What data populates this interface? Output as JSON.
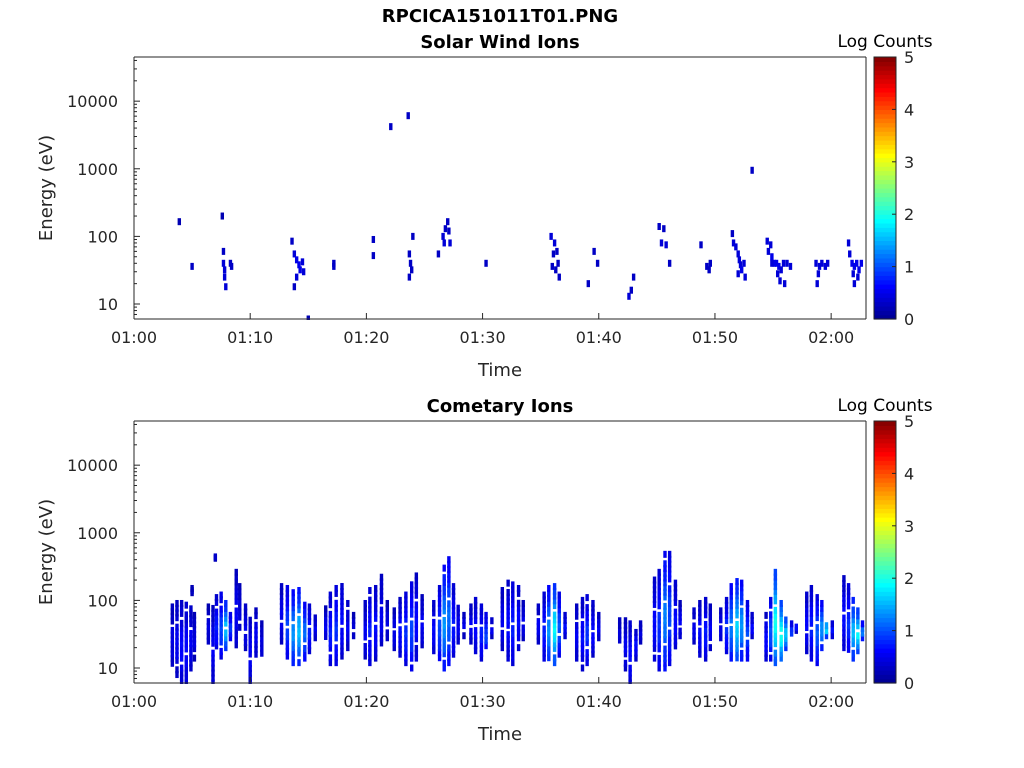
{
  "figure_title": "RPCICA151011T01.PNG",
  "colors": {
    "axis": "#262626",
    "background": "#ffffff",
    "colormap": [
      "#00008f",
      "#0000ff",
      "#0080ff",
      "#00ffff",
      "#80ff80",
      "#ffff00",
      "#ff8000",
      "#ff0000",
      "#800000"
    ]
  },
  "chart_data": [
    {
      "type": "heatmap",
      "title": "Solar Wind Ions",
      "xlabel": "Time",
      "ylabel": "Energy (eV)",
      "y_scale": "log",
      "ylim": [
        6,
        45000
      ],
      "xlim": [
        "01:00",
        "02:03"
      ],
      "x_ticks": [
        "01:00",
        "01:10",
        "01:20",
        "01:30",
        "01:40",
        "01:50",
        "02:00"
      ],
      "y_ticks": [
        10,
        100,
        1000,
        10000
      ],
      "colorbar": {
        "label": "Log Counts",
        "range": [
          0,
          5
        ],
        "ticks": [
          0,
          1,
          2,
          3,
          4,
          5
        ]
      },
      "grid": false,
      "cells": [
        [
          "01:03.9",
          165,
          0.2
        ],
        [
          "01:05.0",
          36,
          0.3
        ],
        [
          "01:07.6",
          200,
          0.2
        ],
        [
          "01:07.7",
          60,
          0.3
        ],
        [
          "01:07.7",
          40,
          0.4
        ],
        [
          "01:07.8",
          32,
          0.4
        ],
        [
          "01:07.8",
          25,
          0.4
        ],
        [
          "01:07.9",
          18,
          0.4
        ],
        [
          "01:08.3",
          40,
          0.3
        ],
        [
          "01:08.4",
          36,
          0.3
        ],
        [
          "01:13.6",
          85,
          0.3
        ],
        [
          "01:13.8",
          55,
          0.4
        ],
        [
          "01:14.0",
          45,
          0.5
        ],
        [
          "01:14.2",
          38,
          0.5
        ],
        [
          "01:14.3",
          32,
          0.5
        ],
        [
          "01:14.5",
          42,
          0.4
        ],
        [
          "01:14.0",
          25,
          0.4
        ],
        [
          "01:13.8",
          18,
          0.3
        ],
        [
          "01:15.0",
          6,
          0.2
        ],
        [
          "01:14.6",
          30,
          0.4
        ],
        [
          "01:17.2",
          40,
          0.3
        ],
        [
          "01:17.2",
          36,
          0.3
        ],
        [
          "01:20.6",
          90,
          0.3
        ],
        [
          "01:20.6",
          52,
          0.3
        ],
        [
          "01:22.1",
          4200,
          0.3
        ],
        [
          "01:23.6",
          6100,
          0.3
        ],
        [
          "01:23.7",
          55,
          0.3
        ],
        [
          "01:23.8",
          40,
          0.3
        ],
        [
          "01:23.9",
          32,
          0.3
        ],
        [
          "01:23.7",
          25,
          0.3
        ],
        [
          "01:24.0",
          100,
          0.3
        ],
        [
          "01:26.6",
          100,
          0.4
        ],
        [
          "01:26.8",
          130,
          0.3
        ],
        [
          "01:27.0",
          165,
          0.3
        ],
        [
          "01:27.1",
          120,
          0.3
        ],
        [
          "01:26.7",
          80,
          0.4
        ],
        [
          "01:27.2",
          80,
          0.4
        ],
        [
          "01:26.2",
          55,
          0.3
        ],
        [
          "01:30.3",
          40,
          0.3
        ],
        [
          "01:35.9",
          100,
          0.4
        ],
        [
          "01:36.2",
          80,
          0.4
        ],
        [
          "01:36.4",
          60,
          0.3
        ],
        [
          "01:36.5",
          40,
          0.3
        ],
        [
          "01:36.0",
          36,
          0.3
        ],
        [
          "01:36.3",
          32,
          0.3
        ],
        [
          "01:36.6",
          25,
          0.3
        ],
        [
          "01:36.1",
          55,
          0.3
        ],
        [
          "01:39.1",
          20,
          0.3
        ],
        [
          "01:39.6",
          60,
          0.3
        ],
        [
          "01:39.9",
          40,
          0.3
        ],
        [
          "01:42.6",
          13,
          0.4
        ],
        [
          "01:42.8",
          16,
          0.3
        ],
        [
          "01:43.0",
          25,
          0.3
        ],
        [
          "01:45.2",
          140,
          0.3
        ],
        [
          "01:45.6",
          130,
          0.3
        ],
        [
          "01:45.4",
          80,
          0.4
        ],
        [
          "01:45.8",
          75,
          0.4
        ],
        [
          "01:46.1",
          40,
          0.3
        ],
        [
          "01:48.8",
          75,
          0.3
        ],
        [
          "01:49.3",
          36,
          0.3
        ],
        [
          "01:49.5",
          32,
          0.3
        ],
        [
          "01:49.6",
          40,
          0.3
        ],
        [
          "01:51.5",
          110,
          0.3
        ],
        [
          "01:51.6",
          80,
          0.4
        ],
        [
          "01:51.8",
          70,
          0.4
        ],
        [
          "01:52.0",
          55,
          0.4
        ],
        [
          "01:52.1",
          45,
          0.4
        ],
        [
          "01:52.2",
          38,
          0.4
        ],
        [
          "01:52.3",
          32,
          0.5
        ],
        [
          "01:52.5",
          40,
          0.4
        ],
        [
          "01:52.6",
          25,
          0.4
        ],
        [
          "01:52.0",
          28,
          0.4
        ],
        [
          "01:53.2",
          950,
          0.3
        ],
        [
          "01:54.5",
          85,
          0.4
        ],
        [
          "01:54.8",
          75,
          0.4
        ],
        [
          "01:54.6",
          60,
          0.4
        ],
        [
          "01:54.9",
          50,
          0.5
        ],
        [
          "01:55.1",
          40,
          0.5
        ],
        [
          "01:55.3",
          40,
          0.5
        ],
        [
          "01:55.5",
          36,
          0.5
        ],
        [
          "01:55.7",
          32,
          0.4
        ],
        [
          "01:55.9",
          40,
          0.4
        ],
        [
          "01:55.4",
          28,
          0.4
        ],
        [
          "01:55.6",
          22,
          0.4
        ],
        [
          "01:56.0",
          20,
          0.4
        ],
        [
          "01:56.2",
          40,
          0.4
        ],
        [
          "01:56.5",
          36,
          0.4
        ],
        [
          "01:54.9",
          40,
          0.4
        ],
        [
          "01:58.7",
          40,
          0.4
        ],
        [
          "01:59.0",
          36,
          0.4
        ],
        [
          "01:59.2",
          40,
          0.4
        ],
        [
          "01:59.5",
          36,
          0.4
        ],
        [
          "01:59.7",
          40,
          0.4
        ],
        [
          "01:58.9",
          28,
          0.4
        ],
        [
          "01:58.8",
          20,
          0.4
        ],
        [
          "02:01.5",
          80,
          0.4
        ],
        [
          "02:01.6",
          55,
          0.4
        ],
        [
          "02:01.8",
          40,
          0.5
        ],
        [
          "02:02.0",
          36,
          0.5
        ],
        [
          "02:02.2",
          40,
          0.5
        ],
        [
          "02:02.4",
          32,
          0.5
        ],
        [
          "02:02.6",
          40,
          0.5
        ],
        [
          "02:01.9",
          28,
          0.4
        ],
        [
          "02:02.3",
          25,
          0.4
        ],
        [
          "02:02.0",
          20,
          0.4
        ]
      ]
    },
    {
      "type": "heatmap",
      "title": "Cometary Ions",
      "xlabel": "Time",
      "ylabel": "Energy (eV)",
      "y_scale": "log",
      "ylim": [
        6,
        45000
      ],
      "xlim": [
        "01:00",
        "02:03"
      ],
      "x_ticks": [
        "01:00",
        "01:10",
        "01:20",
        "01:30",
        "01:40",
        "01:50",
        "02:00"
      ],
      "y_ticks": [
        10,
        100,
        1000,
        10000
      ],
      "colorbar": {
        "label": "Log Counts",
        "range": [
          0,
          5
        ],
        "ticks": [
          0,
          1,
          2,
          3,
          4,
          5
        ]
      },
      "grid": false,
      "columns": [
        [
          "01:03.3",
          10,
          80,
          0.4
        ],
        [
          "01:03.7",
          8,
          90,
          0.5
        ],
        [
          "01:04.1",
          6,
          90,
          0.6
        ],
        [
          "01:04.5",
          6,
          85,
          0.6
        ],
        [
          "01:04.9",
          10,
          75,
          0.5
        ],
        [
          "01:05.2",
          14,
          60,
          0.4
        ],
        [
          "01:05.0",
          130,
          150,
          0.3
        ],
        [
          "01:06.4",
          25,
          80,
          0.4
        ],
        [
          "01:06.8",
          6,
          90,
          0.5
        ],
        [
          "01:07.1",
          18,
          110,
          0.7
        ],
        [
          "01:07.5",
          15,
          120,
          0.9
        ],
        [
          "01:07.9",
          20,
          90,
          1.6
        ],
        [
          "01:08.3",
          28,
          60,
          0.9
        ],
        [
          "01:08.8",
          22,
          260,
          0.5
        ],
        [
          "01:09.1",
          40,
          160,
          0.4
        ],
        [
          "01:09.6",
          20,
          80,
          0.5
        ],
        [
          "01:10.0",
          6,
          60,
          0.5
        ],
        [
          "01:10.5",
          16,
          70,
          0.5
        ],
        [
          "01:11.0",
          14,
          45,
          0.4
        ],
        [
          "01:07.0",
          420,
          460,
          0.3
        ],
        [
          "01:12.7",
          25,
          160,
          0.5
        ],
        [
          "01:13.2",
          15,
          150,
          0.9
        ],
        [
          "01:13.7",
          12,
          130,
          1.3
        ],
        [
          "01:14.2",
          12,
          140,
          1.5
        ],
        [
          "01:14.7",
          14,
          100,
          1.1
        ],
        [
          "01:15.1",
          18,
          80,
          0.7
        ],
        [
          "01:15.6",
          28,
          55,
          0.5
        ],
        [
          "01:16.5",
          25,
          75,
          0.5
        ],
        [
          "01:16.9",
          12,
          120,
          0.7
        ],
        [
          "01:17.4",
          12,
          150,
          0.8
        ],
        [
          "01:17.9",
          15,
          190,
          0.6
        ],
        [
          "01:18.4",
          20,
          90,
          0.5
        ],
        [
          "01:18.9",
          30,
          60,
          0.4
        ],
        [
          "01:19.9",
          15,
          90,
          0.5
        ],
        [
          "01:20.3",
          12,
          140,
          0.7
        ],
        [
          "01:20.8",
          14,
          150,
          0.6
        ],
        [
          "01:21.3",
          20,
          220,
          0.5
        ],
        [
          "01:21.8",
          28,
          90,
          0.4
        ],
        [
          "01:22.4",
          20,
          70,
          0.5
        ],
        [
          "01:22.9",
          16,
          100,
          0.6
        ],
        [
          "01:23.4",
          12,
          120,
          0.8
        ],
        [
          "01:23.9",
          10,
          170,
          0.9
        ],
        [
          "01:24.3",
          14,
          230,
          0.6
        ],
        [
          "01:24.8",
          22,
          110,
          0.5
        ],
        [
          "01:25.8",
          18,
          90,
          0.6
        ],
        [
          "01:26.3",
          12,
          150,
          0.9
        ],
        [
          "01:26.7",
          10,
          300,
          1.3
        ],
        [
          "01:27.1",
          12,
          400,
          1.1
        ],
        [
          "01:27.5",
          16,
          160,
          0.7
        ],
        [
          "01:27.9",
          25,
          90,
          0.5
        ],
        [
          "01:28.4",
          30,
          60,
          0.5
        ],
        [
          "01:29.0",
          25,
          80,
          0.5
        ],
        [
          "01:29.4",
          18,
          100,
          0.6
        ],
        [
          "01:29.9",
          14,
          80,
          0.7
        ],
        [
          "01:30.3",
          18,
          60,
          0.9
        ],
        [
          "01:30.8",
          30,
          50,
          0.5
        ],
        [
          "01:31.7",
          20,
          140,
          0.5
        ],
        [
          "01:32.2",
          14,
          180,
          0.6
        ],
        [
          "01:32.6",
          12,
          200,
          0.7
        ],
        [
          "01:33.1",
          20,
          150,
          0.6
        ],
        [
          "01:33.5",
          28,
          90,
          0.5
        ],
        [
          "01:34.8",
          25,
          80,
          0.5
        ],
        [
          "01:35.3",
          14,
          120,
          0.7
        ],
        [
          "01:35.7",
          12,
          150,
          1.3
        ],
        [
          "01:36.2",
          12,
          160,
          1.8
        ],
        [
          "01:36.6",
          16,
          120,
          1.0
        ],
        [
          "01:37.1",
          30,
          60,
          0.6
        ],
        [
          "01:38.1",
          14,
          80,
          0.5
        ],
        [
          "01:38.6",
          10,
          100,
          0.6
        ],
        [
          "01:39.0",
          12,
          110,
          0.8
        ],
        [
          "01:39.5",
          16,
          90,
          0.6
        ],
        [
          "01:40.0",
          28,
          60,
          0.5
        ],
        [
          "01:41.8",
          22,
          50,
          0.4
        ],
        [
          "01:42.3",
          10,
          50,
          0.5
        ],
        [
          "01:42.7",
          6,
          45,
          0.6
        ],
        [
          "01:43.2",
          14,
          40,
          0.6
        ],
        [
          "01:43.6",
          25,
          45,
          0.4
        ],
        [
          "01:44.8",
          14,
          200,
          0.6
        ],
        [
          "01:45.2",
          10,
          260,
          0.8
        ],
        [
          "01:45.7",
          10,
          480,
          1.2
        ],
        [
          "01:46.1",
          12,
          480,
          0.9
        ],
        [
          "01:46.6",
          18,
          180,
          0.6
        ],
        [
          "01:47.0",
          30,
          90,
          0.5
        ],
        [
          "01:48.2",
          25,
          70,
          0.5
        ],
        [
          "01:48.7",
          16,
          90,
          0.6
        ],
        [
          "01:49.2",
          14,
          100,
          0.7
        ],
        [
          "01:49.6",
          20,
          80,
          0.5
        ],
        [
          "01:50.5",
          28,
          70,
          0.5
        ],
        [
          "01:51.0",
          18,
          100,
          0.8
        ],
        [
          "01:51.4",
          14,
          160,
          1.2
        ],
        [
          "01:51.9",
          12,
          190,
          1.6
        ],
        [
          "01:52.3",
          14,
          180,
          1.3
        ],
        [
          "01:52.8",
          14,
          90,
          0.9
        ],
        [
          "01:53.2",
          30,
          60,
          0.6
        ],
        [
          "01:54.4",
          14,
          60,
          0.6
        ],
        [
          "01:54.8",
          14,
          100,
          1.0
        ],
        [
          "01:55.2",
          12,
          260,
          1.9
        ],
        [
          "01:55.7",
          14,
          90,
          2.0
        ],
        [
          "01:56.1",
          20,
          60,
          1.6
        ],
        [
          "01:56.6",
          28,
          45,
          0.9
        ],
        [
          "01:57.0",
          36,
          45,
          0.6
        ],
        [
          "01:57.9",
          18,
          120,
          0.6
        ],
        [
          "01:58.3",
          14,
          150,
          0.7
        ],
        [
          "01:58.8",
          12,
          110,
          1.0
        ],
        [
          "01:59.2",
          20,
          90,
          1.3
        ],
        [
          "01:59.6",
          30,
          50,
          1.7
        ],
        [
          "02:00.1",
          30,
          45,
          0.7
        ],
        [
          "02:01.1",
          20,
          210,
          0.6
        ],
        [
          "02:01.5",
          16,
          160,
          0.8
        ],
        [
          "02:01.9",
          14,
          100,
          1.5
        ],
        [
          "02:02.3",
          18,
          70,
          1.8
        ],
        [
          "02:02.7",
          28,
          45,
          1.3
        ]
      ]
    }
  ]
}
